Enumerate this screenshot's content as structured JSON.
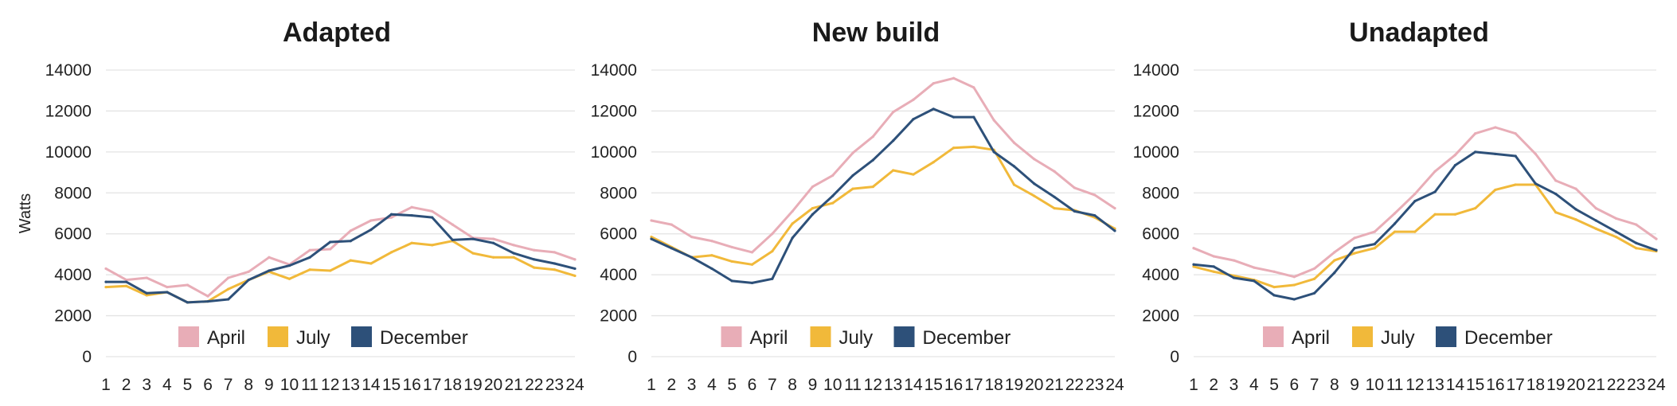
{
  "chart_data": [
    {
      "type": "line",
      "title": "Adapted",
      "ylabel": "Watts",
      "ylim": [
        0,
        14000
      ],
      "yticks": [
        0,
        2000,
        4000,
        6000,
        8000,
        10000,
        12000,
        14000
      ],
      "x": [
        1,
        2,
        3,
        4,
        5,
        6,
        7,
        8,
        9,
        10,
        11,
        12,
        13,
        14,
        15,
        16,
        17,
        18,
        19,
        20,
        21,
        22,
        23,
        24
      ],
      "grid": true,
      "legend": "bottom",
      "series": [
        {
          "name": "April",
          "color": "#e8adb7",
          "values": [
            4300,
            3750,
            3850,
            3400,
            3500,
            2950,
            3850,
            4150,
            4850,
            4500,
            5200,
            5250,
            6150,
            6650,
            6800,
            7300,
            7100,
            6450,
            5800,
            5750,
            5450,
            5200,
            5100,
            4750
          ]
        },
        {
          "name": "July",
          "color": "#f1b93a",
          "values": [
            3400,
            3450,
            3000,
            3150,
            2650,
            2700,
            3300,
            3750,
            4150,
            3800,
            4250,
            4200,
            4700,
            4550,
            5100,
            5550,
            5450,
            5650,
            5050,
            4850,
            4850,
            4350,
            4250,
            3950
          ]
        },
        {
          "name": "December",
          "color": "#2d5079",
          "values": [
            3650,
            3650,
            3100,
            3150,
            2650,
            2700,
            2800,
            3750,
            4200,
            4450,
            4850,
            5600,
            5650,
            6200,
            6950,
            6900,
            6800,
            5700,
            5750,
            5550,
            5050,
            4750,
            4550,
            4300
          ]
        }
      ]
    },
    {
      "type": "line",
      "title": "New build",
      "ylabel": "",
      "ylim": [
        0,
        14000
      ],
      "yticks": [
        0,
        2000,
        4000,
        6000,
        8000,
        10000,
        12000,
        14000
      ],
      "x": [
        1,
        2,
        3,
        4,
        5,
        6,
        7,
        8,
        9,
        10,
        11,
        12,
        13,
        14,
        15,
        16,
        17,
        18,
        19,
        20,
        21,
        22,
        23,
        24
      ],
      "grid": true,
      "legend": "bottom",
      "series": [
        {
          "name": "April",
          "color": "#e8adb7",
          "values": [
            6650,
            6450,
            5850,
            5650,
            5350,
            5100,
            6000,
            7100,
            8300,
            8850,
            9950,
            10750,
            11950,
            12550,
            13350,
            13600,
            13150,
            11550,
            10450,
            9650,
            9050,
            8250,
            7900,
            7250
          ]
        },
        {
          "name": "July",
          "color": "#f1b93a",
          "values": [
            5850,
            5350,
            4850,
            4950,
            4650,
            4500,
            5150,
            6500,
            7250,
            7500,
            8200,
            8300,
            9100,
            8900,
            9500,
            10200,
            10250,
            10100,
            8400,
            7850,
            7250,
            7150,
            6800,
            6250
          ]
        },
        {
          "name": "December",
          "color": "#2d5079",
          "values": [
            5750,
            5300,
            4850,
            4300,
            3700,
            3600,
            3800,
            5800,
            6950,
            7850,
            8850,
            9600,
            10550,
            11600,
            12100,
            11700,
            11700,
            10000,
            9300,
            8450,
            7800,
            7100,
            6900,
            6150
          ]
        }
      ]
    },
    {
      "type": "line",
      "title": "Unadapted",
      "ylabel": "",
      "ylim": [
        0,
        14000
      ],
      "yticks": [
        0,
        2000,
        4000,
        6000,
        8000,
        10000,
        12000,
        14000
      ],
      "x": [
        1,
        2,
        3,
        4,
        5,
        6,
        7,
        8,
        9,
        10,
        11,
        12,
        13,
        14,
        15,
        16,
        17,
        18,
        19,
        20,
        21,
        22,
        23,
        24
      ],
      "grid": true,
      "legend": "bottom",
      "series": [
        {
          "name": "April",
          "color": "#e8adb7",
          "values": [
            5300,
            4900,
            4700,
            4350,
            4150,
            3900,
            4300,
            5100,
            5800,
            6100,
            7000,
            7950,
            9050,
            9850,
            10900,
            11200,
            10900,
            9900,
            8600,
            8200,
            7250,
            6750,
            6450,
            5750
          ]
        },
        {
          "name": "July",
          "color": "#f1b93a",
          "values": [
            4400,
            4150,
            3950,
            3750,
            3400,
            3500,
            3800,
            4700,
            5050,
            5300,
            6100,
            6100,
            6950,
            6950,
            7250,
            8150,
            8400,
            8400,
            7050,
            6700,
            6250,
            5850,
            5300,
            5150
          ]
        },
        {
          "name": "December",
          "color": "#2d5079",
          "values": [
            4500,
            4400,
            3850,
            3700,
            3000,
            2800,
            3100,
            4100,
            5300,
            5500,
            6500,
            7600,
            8050,
            9350,
            10000,
            9900,
            9800,
            8450,
            7950,
            7200,
            6650,
            6100,
            5550,
            5200
          ]
        }
      ]
    }
  ]
}
